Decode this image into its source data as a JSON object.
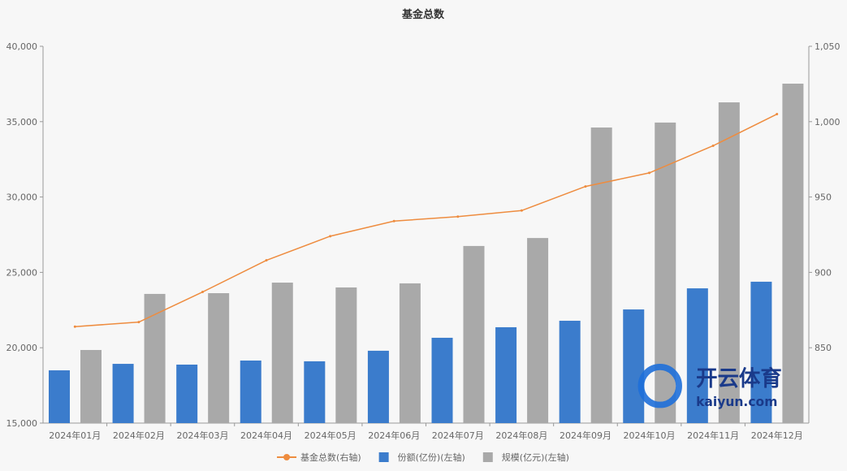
{
  "chart_data": {
    "type": "bar+line",
    "title": "基金总数",
    "categories": [
      "2024年01月",
      "2024年02月",
      "2024年03月",
      "2024年04月",
      "2024年05月",
      "2024年06月",
      "2024年07月",
      "2024年08月",
      "2024年09月",
      "2024年10月",
      "2024年11月",
      "2024年12月"
    ],
    "y_left": {
      "min": 15000,
      "max": 40000,
      "ticks": [
        15000,
        20000,
        25000,
        30000,
        35000,
        40000
      ],
      "tick_labels": [
        "15,000",
        "20,000",
        "25,000",
        "30,000",
        "35,000",
        "40,000"
      ]
    },
    "y_right": {
      "min": 800,
      "max": 1050,
      "ticks": [
        850,
        900,
        950,
        1000,
        1050
      ],
      "tick_labels": [
        "850",
        "900",
        "950",
        "1,000",
        "1,050"
      ]
    },
    "series": [
      {
        "name": "基金总数(右轴)",
        "type": "line",
        "axis": "right",
        "color": "#ee8c3f",
        "values": [
          864,
          867,
          887,
          908,
          924,
          934,
          937,
          941,
          957,
          966,
          984,
          1005
        ]
      },
      {
        "name": "份额(亿份)(左轴)",
        "type": "bar",
        "axis": "left",
        "color": "#3b7ccc",
        "values": [
          18500,
          18930,
          18880,
          19150,
          19100,
          19800,
          20660,
          21360,
          21790,
          22540,
          23940,
          24380
        ]
      },
      {
        "name": "规模(亿元)(左轴)",
        "type": "bar",
        "axis": "left",
        "color": "#a9a9a9",
        "values": [
          19850,
          23570,
          23620,
          24320,
          24000,
          24270,
          26750,
          27280,
          34610,
          34940,
          36280,
          37520
        ]
      }
    ],
    "grid": false,
    "legend": "bottom"
  },
  "watermark": {
    "text": "开云体育",
    "url": "kaiyun.com"
  }
}
